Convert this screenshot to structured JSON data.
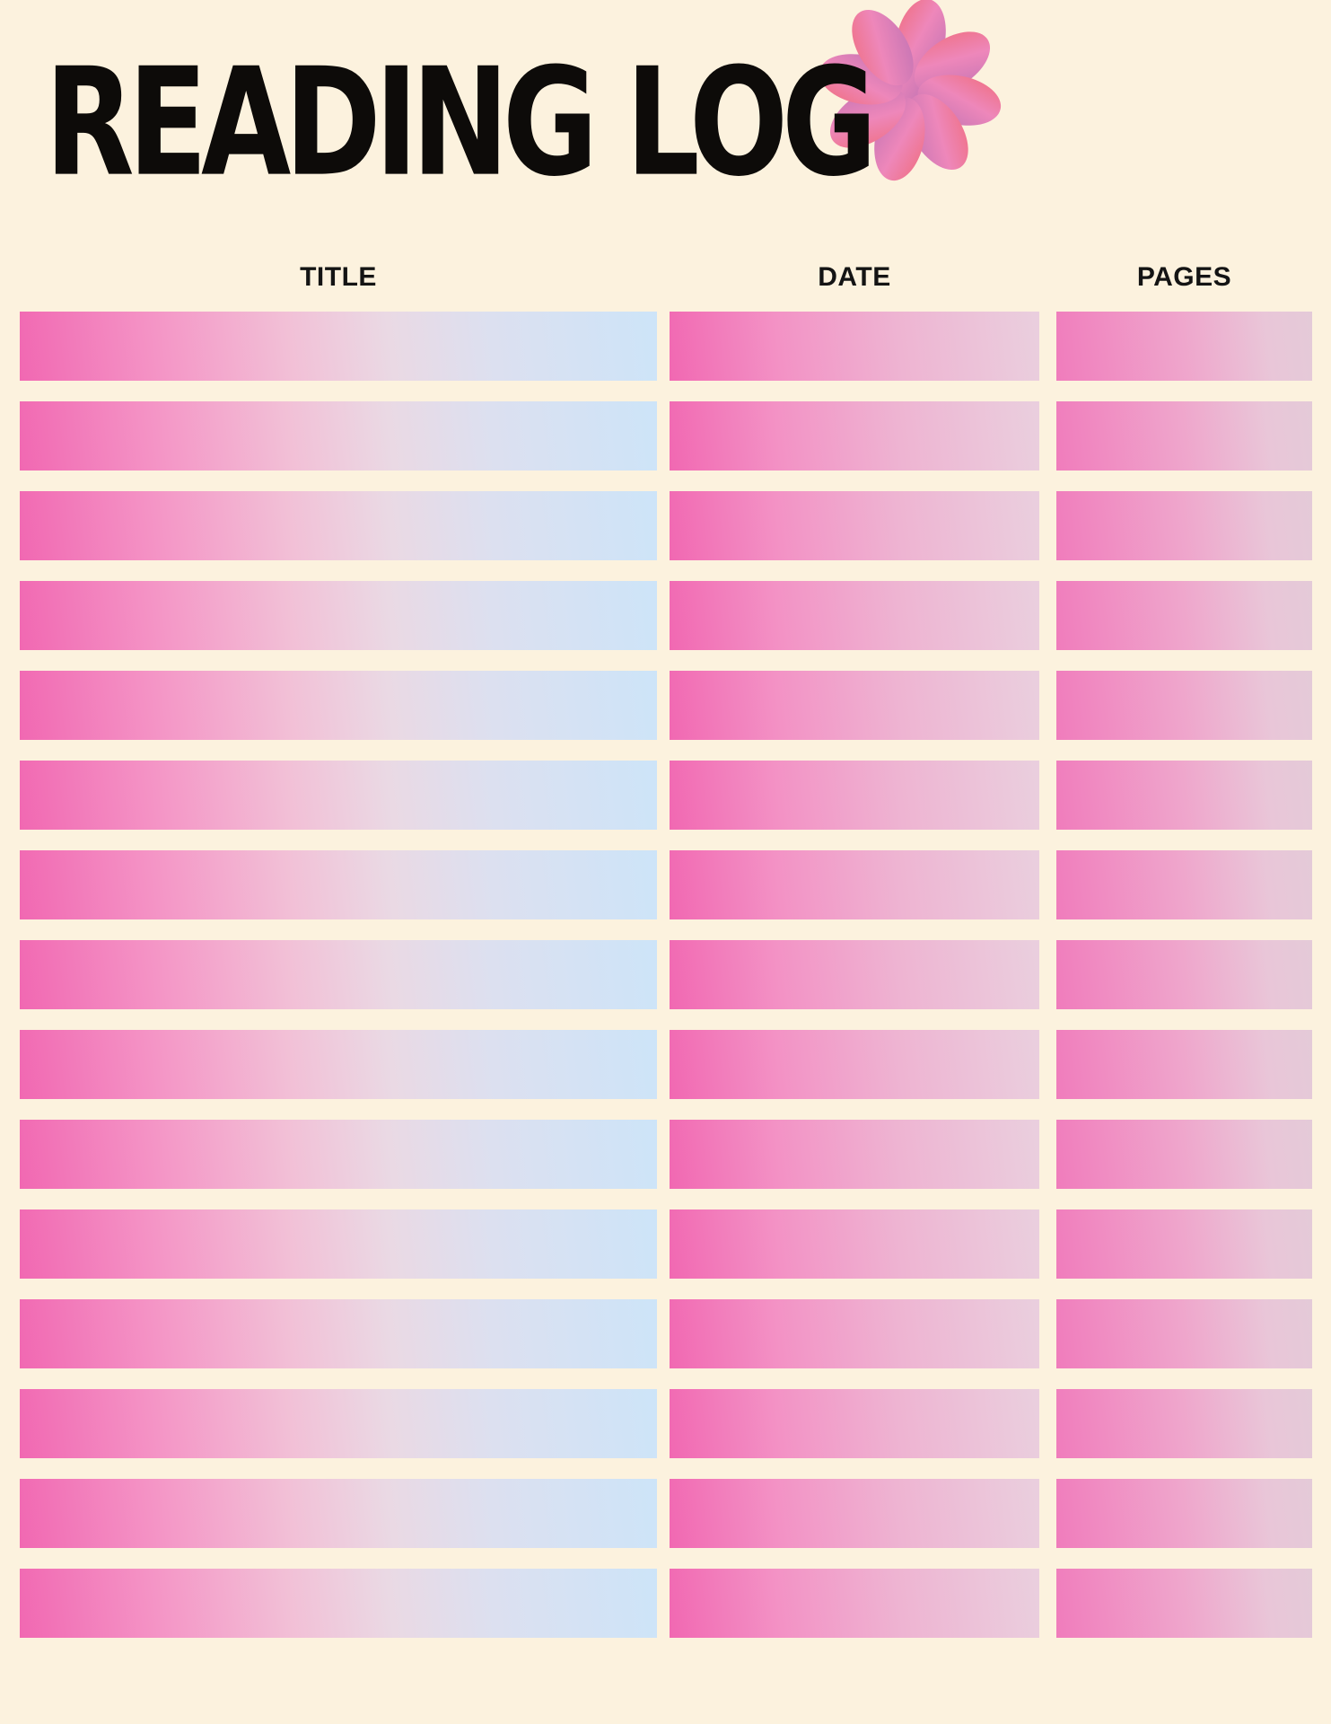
{
  "page": {
    "title": "READING LOG",
    "background_color": "#fcf2de",
    "title_color": "#0d0b09"
  },
  "flower": {
    "icon": "flower-icon",
    "petal_count": 8,
    "gradient": [
      "#f1513b",
      "#ee87ba",
      "#a868b0",
      "#6f4ba0"
    ]
  },
  "table": {
    "headers": [
      {
        "id": "title",
        "label": "TITLE"
      },
      {
        "id": "date",
        "label": "DATE"
      },
      {
        "id": "pages",
        "label": "PAGES"
      }
    ],
    "row_count": 15,
    "rows": [
      {
        "title": "",
        "date": "",
        "pages": ""
      },
      {
        "title": "",
        "date": "",
        "pages": ""
      },
      {
        "title": "",
        "date": "",
        "pages": ""
      },
      {
        "title": "",
        "date": "",
        "pages": ""
      },
      {
        "title": "",
        "date": "",
        "pages": ""
      },
      {
        "title": "",
        "date": "",
        "pages": ""
      },
      {
        "title": "",
        "date": "",
        "pages": ""
      },
      {
        "title": "",
        "date": "",
        "pages": ""
      },
      {
        "title": "",
        "date": "",
        "pages": ""
      },
      {
        "title": "",
        "date": "",
        "pages": ""
      },
      {
        "title": "",
        "date": "",
        "pages": ""
      },
      {
        "title": "",
        "date": "",
        "pages": ""
      },
      {
        "title": "",
        "date": "",
        "pages": ""
      },
      {
        "title": "",
        "date": "",
        "pages": ""
      },
      {
        "title": "",
        "date": "",
        "pages": ""
      }
    ],
    "bar_colors": {
      "title": [
        "#f168b2",
        "#f495c6",
        "#f2bfd6",
        "#ead9e4",
        "#dce0f0",
        "#cde4f8"
      ],
      "date": [
        "#f168b2",
        "#f392c5",
        "#eeb4d2",
        "#eacfde"
      ],
      "pages": [
        "#f07cbc",
        "#efa6cc",
        "#e9c6d8",
        "#e4cad8"
      ]
    }
  }
}
